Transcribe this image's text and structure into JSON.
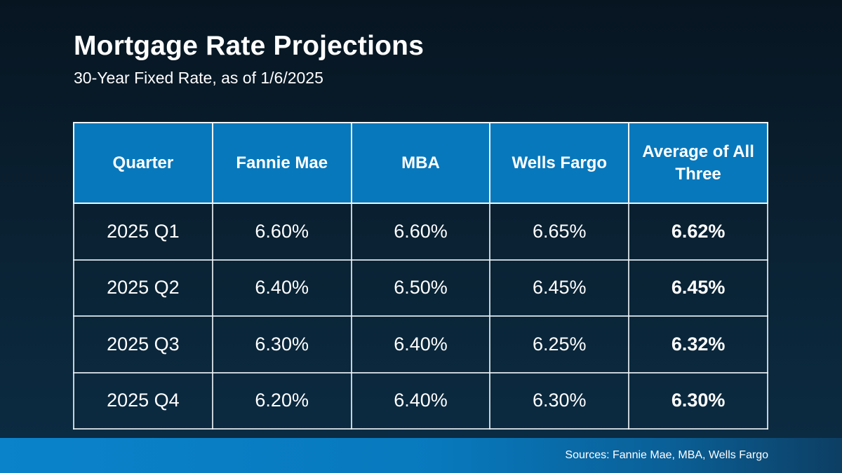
{
  "page": {
    "title": "Mortgage Rate Projections",
    "subtitle": "30-Year Fixed Rate, as of 1/6/2025"
  },
  "table": {
    "columns": [
      "Quarter",
      "Fannie Mae",
      "MBA",
      "Wells Fargo",
      "Average of All Three"
    ],
    "rows": [
      [
        "2025 Q1",
        "6.60%",
        "6.60%",
        "6.65%",
        "6.62%"
      ],
      [
        "2025 Q2",
        "6.40%",
        "6.50%",
        "6.45%",
        "6.45%"
      ],
      [
        "2025 Q3",
        "6.30%",
        "6.40%",
        "6.25%",
        "6.32%"
      ],
      [
        "2025 Q4",
        "6.20%",
        "6.40%",
        "6.30%",
        "6.30%"
      ]
    ]
  },
  "footer": {
    "sources": "Sources: Fannie Mae, MBA, Wells Fargo"
  },
  "colors": {
    "header_blue": "#0878BC",
    "footer_blue_left": "#0A83CB",
    "footer_blue_right": "#0D3E63",
    "background_top": "#071521",
    "background_bottom": "#0B2D45",
    "table_border": "#F0F5F8",
    "text": "#FFFFFF"
  },
  "chart_data": {
    "type": "table",
    "title": "Mortgage Rate Projections",
    "subtitle": "30-Year Fixed Rate, as of 1/6/2025",
    "categories": [
      "2025 Q1",
      "2025 Q2",
      "2025 Q3",
      "2025 Q4"
    ],
    "series": [
      {
        "name": "Fannie Mae",
        "values": [
          6.6,
          6.4,
          6.3,
          6.2
        ]
      },
      {
        "name": "MBA",
        "values": [
          6.6,
          6.5,
          6.4,
          6.4
        ]
      },
      {
        "name": "Wells Fargo",
        "values": [
          6.65,
          6.45,
          6.25,
          6.3
        ]
      },
      {
        "name": "Average of All Three",
        "values": [
          6.62,
          6.45,
          6.32,
          6.3
        ]
      }
    ],
    "unit": "%",
    "legend_position": "none",
    "grid": false
  }
}
